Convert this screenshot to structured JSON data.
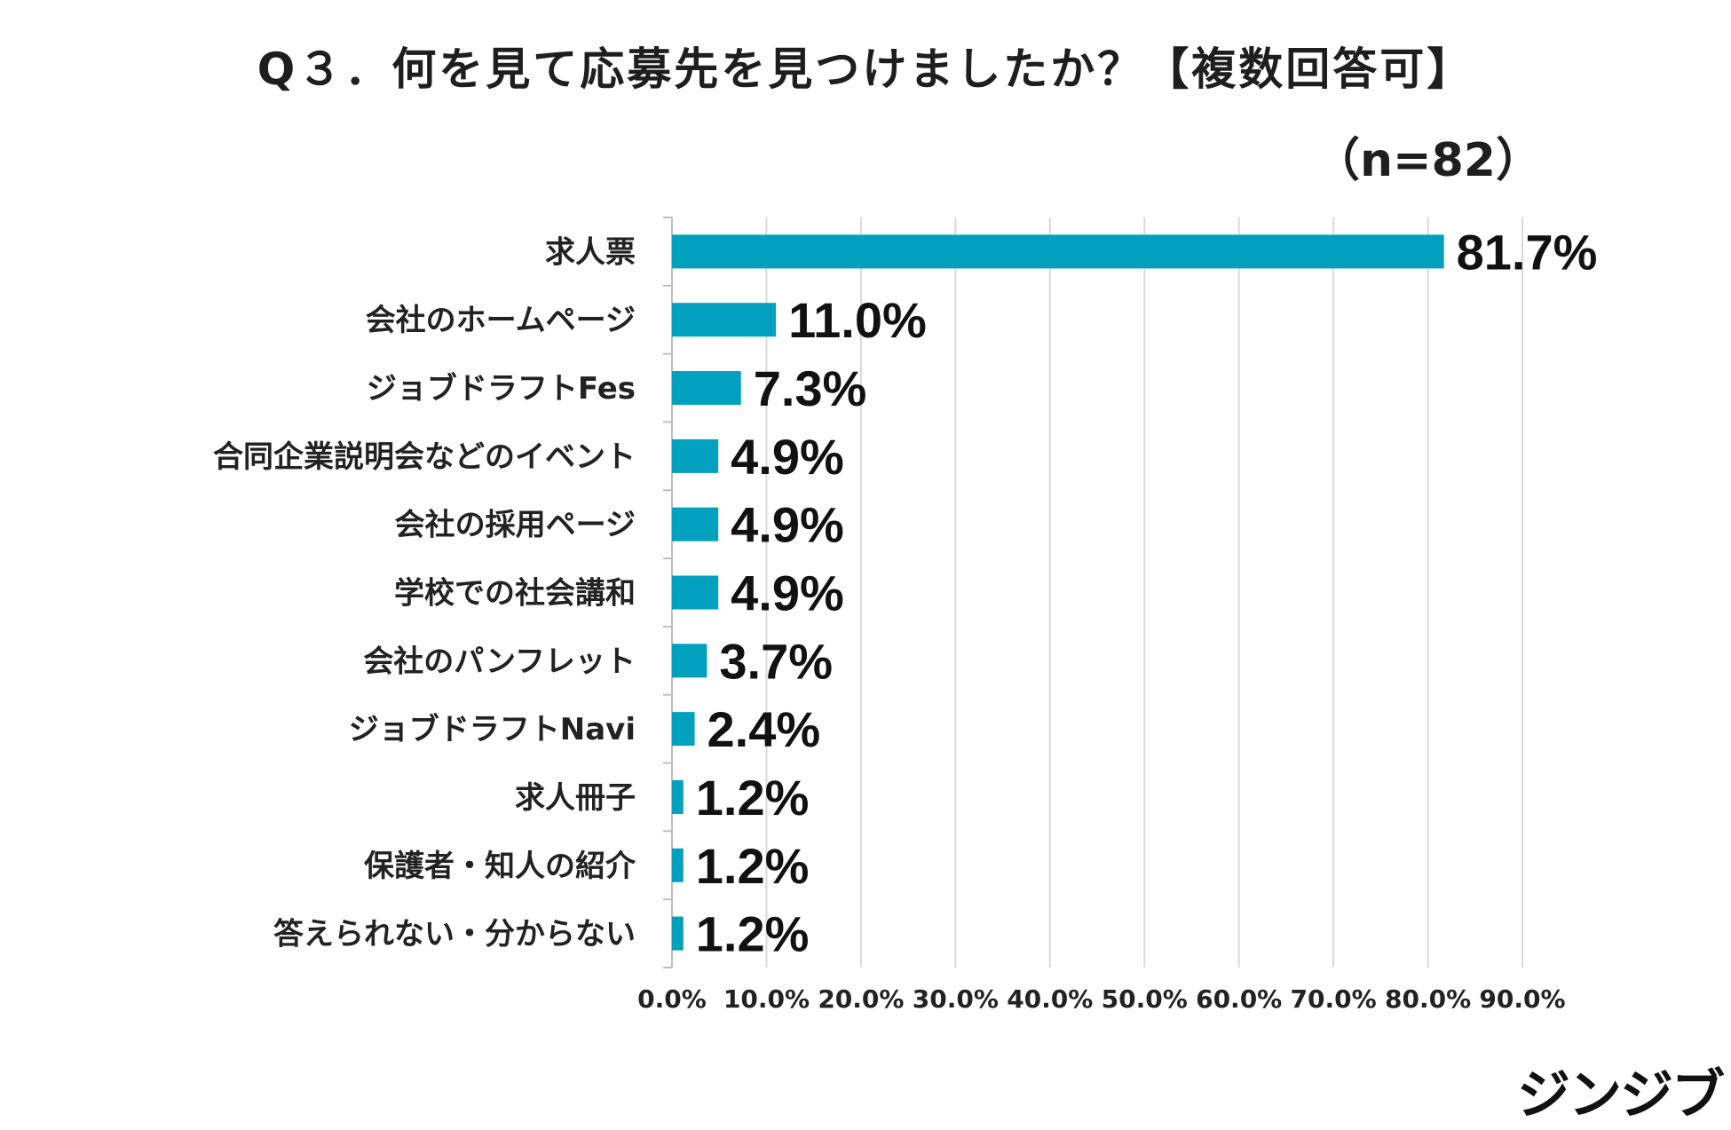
{
  "chart_data": {
    "type": "bar",
    "orientation": "horizontal",
    "title": "Q３．何を見て応募先を見つけましたか？【複数回答可】",
    "sample_size": "（n=82）",
    "categories": [
      "求人票",
      "会社のホームページ",
      "ジョブドラフトFes",
      "合同企業説明会などのイベント",
      "会社の採用ページ",
      "学校での社会講和",
      "会社のパンフレット",
      "ジョブドラフトNavi",
      "求人冊子",
      "保護者・知人の紹介",
      "答えられない・分からない"
    ],
    "values": [
      81.7,
      11.0,
      7.3,
      4.9,
      4.9,
      4.9,
      3.7,
      2.4,
      1.2,
      1.2,
      1.2
    ],
    "value_labels": [
      "81.7%",
      "11.0%",
      "7.3%",
      "4.9%",
      "4.9%",
      "4.9%",
      "3.7%",
      "2.4%",
      "1.2%",
      "1.2%",
      "1.2%"
    ],
    "x_ticks": [
      0,
      10,
      20,
      30,
      40,
      50,
      60,
      70,
      80,
      90
    ],
    "x_tick_labels": [
      "0.0%",
      "10.0%",
      "20.0%",
      "30.0%",
      "40.0%",
      "50.0%",
      "60.0%",
      "70.0%",
      "80.0%",
      "90.0%"
    ],
    "xlim": [
      0,
      90
    ],
    "grid": true,
    "bar_color": "#00a0be",
    "grid_color": "#d9d9d9"
  },
  "brand": "ジンジブ"
}
